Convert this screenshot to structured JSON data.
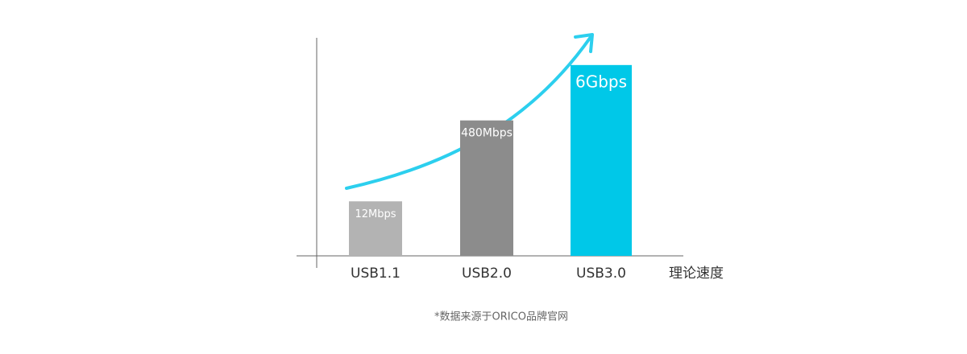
{
  "chart_data": {
    "type": "bar",
    "categories": [
      "USB1.1",
      "USB2.0",
      "USB3.0"
    ],
    "values": [
      12,
      480,
      6000
    ],
    "value_labels": [
      "12Mbps",
      "480Mbps",
      "6Gbps"
    ],
    "colors": [
      "#b3b3b3",
      "#8c8c8c",
      "#00c8e8"
    ],
    "log_scale": true,
    "ylim": [
      1,
      20000
    ],
    "x_label": "理论速度",
    "note": "*数据来源于ORICO品牌官网"
  }
}
